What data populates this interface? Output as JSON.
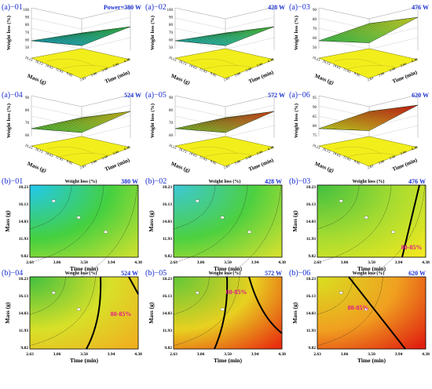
{
  "figure": {
    "row_a_labels": [
      "(a)−01",
      "(a)−02",
      "(a)−03",
      "(a)−04",
      "(a)−05",
      "(a)−06"
    ],
    "row_b_labels": [
      "(b)−01",
      "(b)−02",
      "(b)−03",
      "(b)−04",
      "(b)−05",
      "(b)−06"
    ],
    "annotation": "80-85%"
  },
  "chart_data": [
    {
      "panel": "(a)-01",
      "type": "surface",
      "power_label": "Power=380 W",
      "zlabel": "Weight loss (%)",
      "xlabel": "Time (min)",
      "ylabel": "Mass (g)",
      "z_ticks": [
        "100",
        "90",
        "80",
        "70",
        "60",
        "50"
      ],
      "time_ticks": [
        "2.63",
        "3.06",
        "3.50",
        "3.94",
        "4.38"
      ],
      "mass_ticks": [
        "18.23",
        "16.13",
        "14.03",
        "11.93",
        "9.82"
      ],
      "z_range": [
        50,
        100
      ],
      "colors": [
        "#1a9fd0",
        "#3fc24a"
      ]
    },
    {
      "panel": "(a)-02",
      "type": "surface",
      "power_label": "428 W",
      "zlabel": "Weight loss (%)",
      "xlabel": "Time (min)",
      "ylabel": "Mass (g)",
      "z_ticks": [
        "100",
        "90",
        "80",
        "70",
        "60",
        "50"
      ],
      "time_ticks": [
        "2.63",
        "3.06",
        "3.50",
        "3.94",
        "4.38"
      ],
      "mass_ticks": [
        "18.23",
        "16.13",
        "14.03",
        "11.93",
        "9.82"
      ],
      "z_range": [
        50,
        100
      ],
      "colors": [
        "#20b0c8",
        "#58cc3a"
      ]
    },
    {
      "panel": "(a)-03",
      "type": "surface",
      "power_label": "476 W",
      "zlabel": "Weight loss (%)",
      "xlabel": "Time (min)",
      "ylabel": "Mass (g)",
      "z_ticks": [
        "90",
        "80",
        "70",
        "60",
        "50"
      ],
      "time_ticks": [
        "2.63",
        "3.06",
        "3.50",
        "3.94",
        "4.38"
      ],
      "mass_ticks": [
        "18.23",
        "16.13",
        "14.03",
        "11.93",
        "9.82"
      ],
      "z_range": [
        50,
        90
      ],
      "colors": [
        "#3cc050",
        "#d8d828"
      ]
    },
    {
      "panel": "(a)-04",
      "type": "surface",
      "power_label": "524 W",
      "zlabel": "Weight loss (%)",
      "xlabel": "Time (min)",
      "ylabel": "Mass (g)",
      "z_ticks": [
        "90",
        "80",
        "70",
        "60"
      ],
      "time_ticks": [
        "2.63",
        "3.06",
        "3.50",
        "3.94",
        "4.38"
      ],
      "mass_ticks": [
        "18.23",
        "16.13",
        "14.03",
        "11.93",
        "9.82"
      ],
      "z_range": [
        60,
        90
      ],
      "colors": [
        "#4cc040",
        "#e0c020"
      ]
    },
    {
      "panel": "(a)-05",
      "type": "surface",
      "power_label": "572 W",
      "zlabel": "Weight loss (%)",
      "xlabel": "Time (min)",
      "ylabel": "Mass (g)",
      "z_ticks": [
        "90",
        "80",
        "70",
        "60"
      ],
      "time_ticks": [
        "2.63",
        "3.06",
        "3.50",
        "3.94",
        "4.38"
      ],
      "mass_ticks": [
        "18.23",
        "16.13",
        "14.03",
        "11.93",
        "9.82"
      ],
      "z_range": [
        60,
        90
      ],
      "colors": [
        "#7cc830",
        "#e84020"
      ]
    },
    {
      "panel": "(a)-06",
      "type": "surface",
      "power_label": "620 W",
      "zlabel": "Weight loss (%)",
      "xlabel": "Time (min)",
      "ylabel": "Mass (g)",
      "z_ticks": [
        "95",
        "90",
        "85",
        "80",
        "75"
      ],
      "time_ticks": [
        "2.63",
        "3.06",
        "3.50",
        "3.94",
        "4.38"
      ],
      "mass_ticks": [
        "18.23",
        "16.13",
        "14.03",
        "11.93",
        "9.82"
      ],
      "z_range": [
        75,
        95
      ],
      "colors": [
        "#c8d820",
        "#d81818"
      ]
    },
    {
      "panel": "(b)-01",
      "type": "contour",
      "title": "Weight loss (%)",
      "power_label": "380 W",
      "xlabel": "Time (min)",
      "ylabel": "Mass (g)",
      "x_ticks": [
        "2.63",
        "3.06",
        "3.50",
        "3.94",
        "4.38"
      ],
      "y_ticks": [
        "18.23",
        "16.13",
        "14.03",
        "11.93",
        "9.82"
      ],
      "colors": [
        "#22c8f0",
        "#44d040",
        "#c8e030"
      ],
      "center": [
        0,
        1
      ],
      "bold_contours": []
    },
    {
      "panel": "(b)-02",
      "type": "contour",
      "title": "Weight loss (%)",
      "power_label": "428 W",
      "xlabel": "Time (min)",
      "ylabel": "Mass (g)",
      "x_ticks": [
        "2.63",
        "3.06",
        "3.50",
        "3.94",
        "4.38"
      ],
      "y_ticks": [
        "18.23",
        "16.13",
        "14.03",
        "11.93",
        "9.82"
      ],
      "colors": [
        "#3cc8d8",
        "#4cd040",
        "#d0e030"
      ],
      "center": [
        0,
        1
      ],
      "bold_contours": []
    },
    {
      "panel": "(b)-03",
      "type": "contour",
      "title": "Weight loss (%)",
      "power_label": "476 W",
      "xlabel": "Time (min)",
      "ylabel": "Mass (g)",
      "x_ticks": [
        "2.63",
        "3.06",
        "3.50",
        "3.94",
        "4.38"
      ],
      "y_ticks": [
        "18.23",
        "16.13",
        "14.03",
        "11.93",
        "9.82"
      ],
      "colors": [
        "#40c040",
        "#a8dc30",
        "#f0e820"
      ],
      "center": [
        0,
        1
      ],
      "bold_contours": [
        "80-85% boundary"
      ],
      "region_label": "80-85%"
    },
    {
      "panel": "(b)-04",
      "type": "contour",
      "title": "Weight loss (%)",
      "power_label": "524 W",
      "xlabel": "Time (min)",
      "ylabel": "Mass (g)",
      "x_ticks": [
        "2.63",
        "3.06",
        "3.50",
        "3.94",
        "4.38"
      ],
      "y_ticks": [
        "18.23",
        "16.13",
        "14.03",
        "11.93",
        "9.82"
      ],
      "colors": [
        "#40c040",
        "#d8e028",
        "#f0b020"
      ],
      "center": [
        0,
        1
      ],
      "bold_contours": [
        "80-85% boundary"
      ],
      "region_label": "80-85%"
    },
    {
      "panel": "(b)-05",
      "type": "contour",
      "title": "Weight loss (%)",
      "power_label": "572 W",
      "xlabel": "Time (min)",
      "ylabel": "Mass (g)",
      "x_ticks": [
        "2.63",
        "3.06",
        "3.50",
        "3.94",
        "4.38"
      ],
      "y_ticks": [
        "18.23",
        "16.13",
        "14.03",
        "11.93",
        "9.82"
      ],
      "colors": [
        "#60c838",
        "#e8d020",
        "#e83010"
      ],
      "center": [
        0,
        1
      ],
      "bold_contours": [
        "80-85% boundary"
      ],
      "region_label": "80-85%"
    },
    {
      "panel": "(b)-06",
      "type": "contour",
      "title": "Weight loss (%)",
      "power_label": "620 W",
      "xlabel": "Time (min)",
      "ylabel": "Mass (g)",
      "x_ticks": [
        "2.63",
        "3.06",
        "3.50",
        "3.94",
        "4.38"
      ],
      "y_ticks": [
        "18.23",
        "16.13",
        "14.03",
        "11.93",
        "9.82"
      ],
      "colors": [
        "#d8e020",
        "#f0a020",
        "#e02010"
      ],
      "center": [
        0,
        1
      ],
      "bold_contours": [
        "80-85% boundary"
      ],
      "region_label": "80-85%"
    }
  ]
}
